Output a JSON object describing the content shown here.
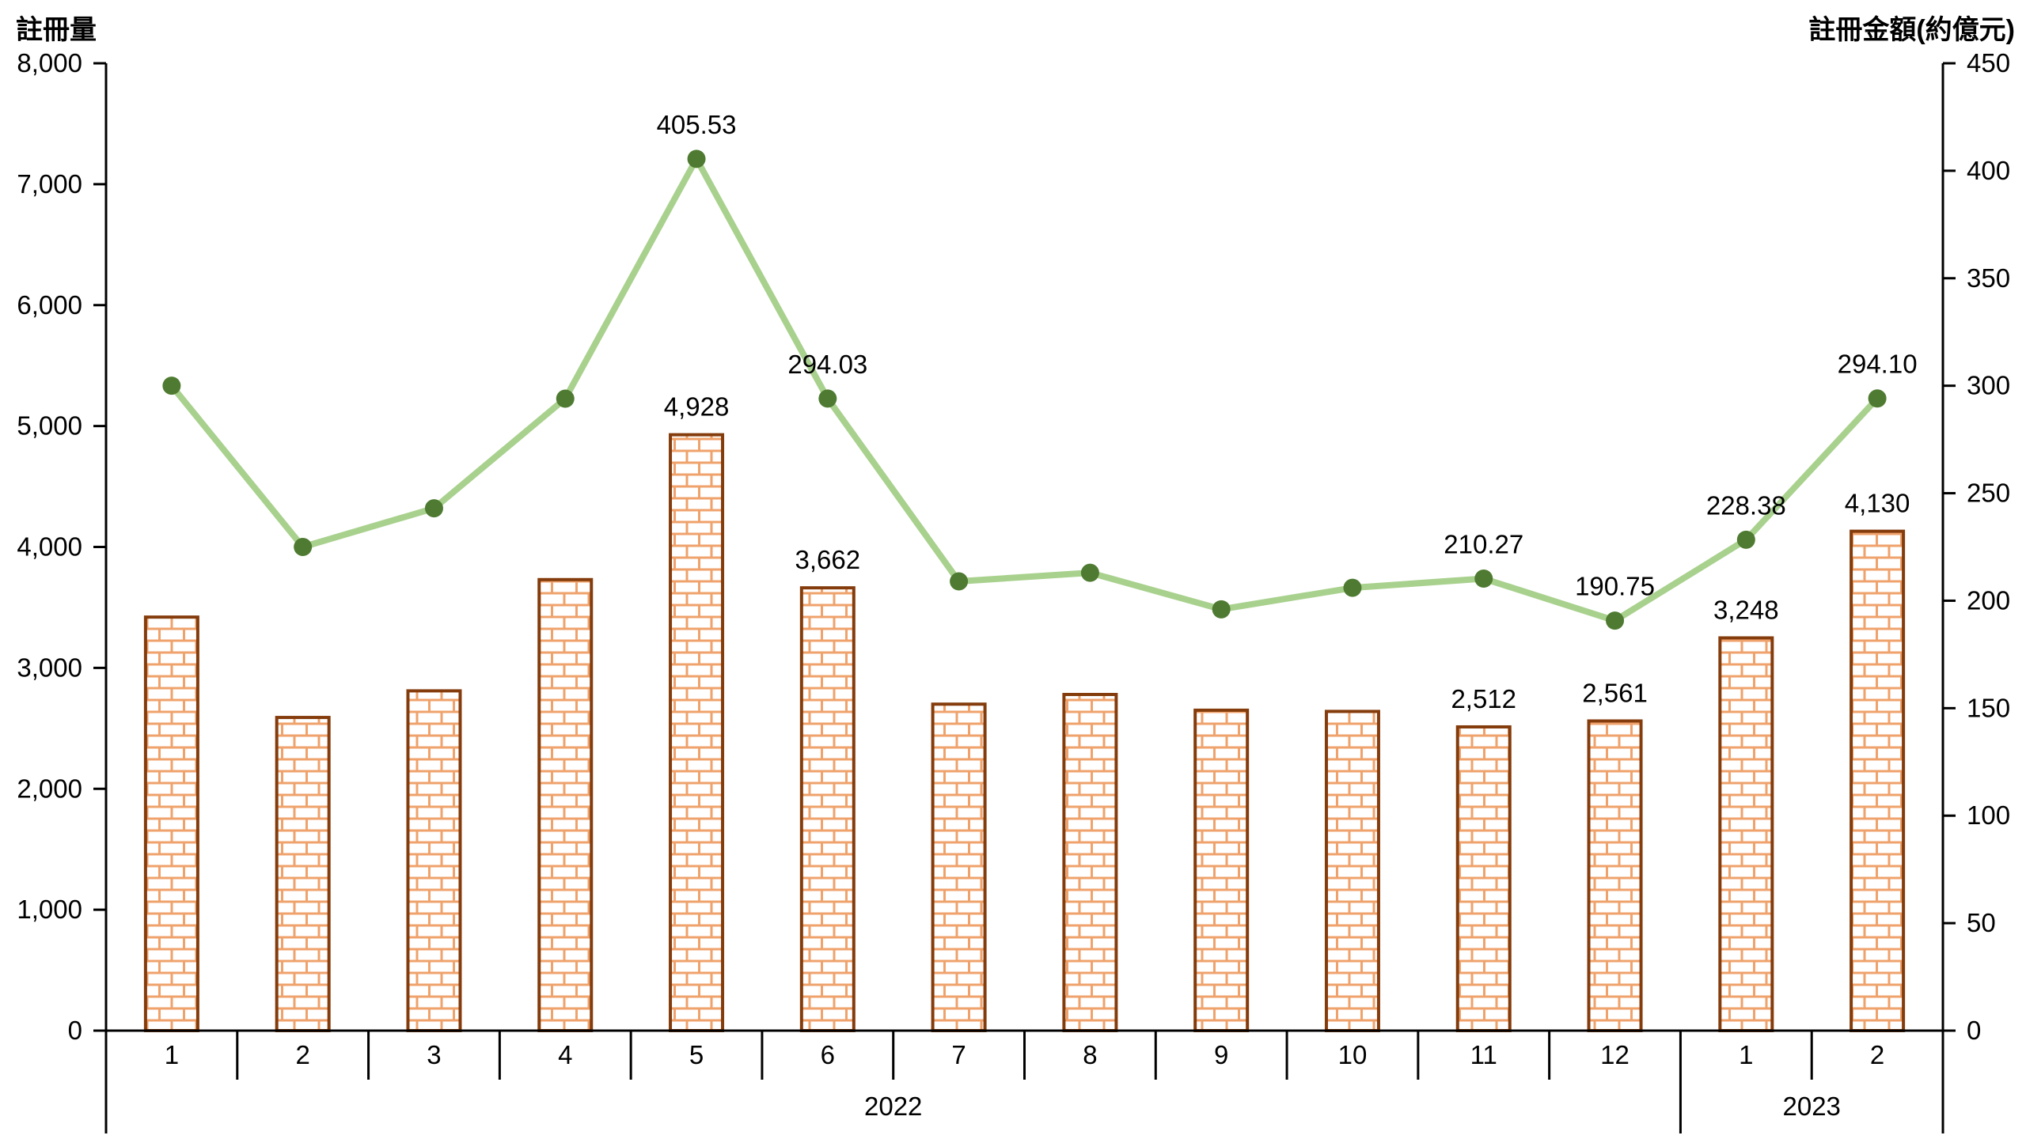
{
  "chart_data": {
    "type": "combo-bar-line",
    "title": "",
    "left_axis": {
      "title": "註冊量",
      "min": 0,
      "max": 8000,
      "step": 1000,
      "tick_labels": [
        "0",
        "1,000",
        "2,000",
        "3,000",
        "4,000",
        "5,000",
        "6,000",
        "7,000",
        "8,000"
      ]
    },
    "right_axis": {
      "title": "註冊金額(約億元)",
      "min": 0,
      "max": 450,
      "step": 50,
      "tick_labels": [
        "0",
        "50",
        "100",
        "150",
        "200",
        "250",
        "300",
        "350",
        "400",
        "450"
      ]
    },
    "categories": [
      "1",
      "2",
      "3",
      "4",
      "5",
      "6",
      "7",
      "8",
      "9",
      "10",
      "11",
      "12",
      "1",
      "2"
    ],
    "year_groups": [
      {
        "label": "2022",
        "span": 12
      },
      {
        "label": "2023",
        "span": 2
      }
    ],
    "series": [
      {
        "name": "註冊量",
        "type": "bar",
        "values": [
          3420,
          2590,
          2810,
          3730,
          4928,
          3662,
          2700,
          2780,
          2650,
          2640,
          2512,
          2561,
          3248,
          4130
        ],
        "data_labels": [
          null,
          null,
          null,
          null,
          "4,928",
          "3,662",
          null,
          null,
          null,
          null,
          "2,512",
          "2,561",
          "3,248",
          "4,130"
        ]
      },
      {
        "name": "註冊金額",
        "type": "line",
        "values": [
          300,
          225,
          243,
          294,
          405.53,
          294.03,
          209,
          213,
          196,
          206,
          210.27,
          190.75,
          228.38,
          294.1
        ],
        "data_labels": [
          null,
          null,
          null,
          null,
          "405.53",
          "294.03",
          null,
          null,
          null,
          null,
          "210.27",
          "190.75",
          "228.38",
          "294.10"
        ]
      }
    ],
    "legend": "none",
    "grid": "off",
    "colors": {
      "bar_border": "#843C0C",
      "bar_fill": "#FFFFFF",
      "bar_pattern_line": "#EFA26B",
      "line": "#A9D18E",
      "marker": "#4E7B31",
      "axis": "#000000",
      "text": "#000000"
    }
  }
}
